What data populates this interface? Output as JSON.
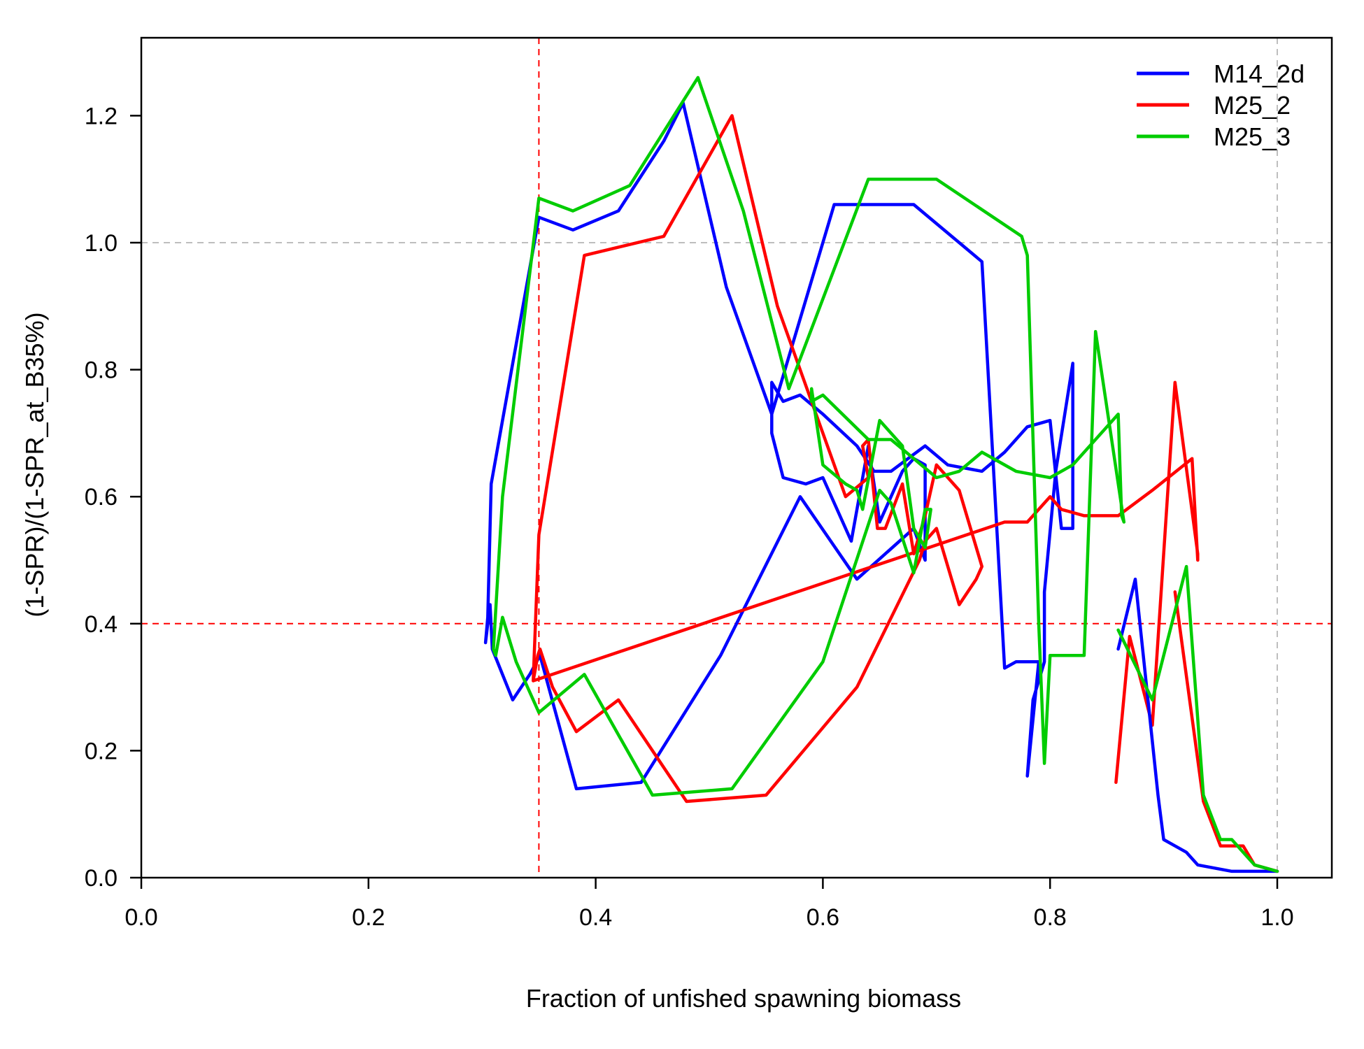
{
  "chart_data": {
    "type": "line",
    "title": "",
    "xlabel": "Fraction of unfished spawning biomass",
    "ylabel": "(1-SPR)/(1-SPR_at_B35%)",
    "xlim": [
      0.0,
      1.05
    ],
    "ylim": [
      0.0,
      1.3
    ],
    "xticks": [
      "0.0",
      "0.2",
      "0.4",
      "0.6",
      "0.8",
      "1.0"
    ],
    "yticks": [
      "0.0",
      "0.2",
      "0.4",
      "0.6",
      "0.8",
      "1.0",
      "1.2"
    ],
    "grid": false,
    "legend_position": "top-right",
    "reference_lines": [
      {
        "axis": "x",
        "value": 0.35,
        "color": "#ff0000",
        "style": "dashed"
      },
      {
        "axis": "y",
        "value": 0.4,
        "color": "#ff0000",
        "style": "dashed"
      },
      {
        "axis": "x",
        "value": 1.0,
        "color": "#bebebe",
        "style": "dashed"
      },
      {
        "axis": "y",
        "value": 1.0,
        "color": "#bebebe",
        "style": "dashed"
      }
    ],
    "series": [
      {
        "name": "M14_2d",
        "color": "#0000ff",
        "points": [
          [
            0.303,
            0.37
          ],
          [
            0.307,
            0.43
          ],
          [
            0.309,
            0.36
          ],
          [
            0.327,
            0.28
          ],
          [
            0.342,
            0.32
          ],
          [
            0.351,
            0.35
          ],
          [
            0.383,
            0.14
          ],
          [
            0.44,
            0.15
          ],
          [
            0.51,
            0.35
          ],
          [
            0.58,
            0.6
          ],
          [
            0.63,
            0.47
          ],
          [
            0.68,
            0.55
          ],
          [
            0.69,
            0.5
          ],
          [
            0.69,
            0.65
          ],
          [
            0.68,
            0.66
          ],
          [
            0.67,
            0.64
          ],
          [
            0.65,
            0.56
          ],
          [
            0.64,
            0.68
          ],
          [
            0.625,
            0.53
          ],
          [
            0.6,
            0.63
          ],
          [
            0.585,
            0.62
          ],
          [
            0.565,
            0.63
          ],
          [
            0.555,
            0.7
          ],
          [
            0.555,
            0.78
          ],
          [
            0.565,
            0.75
          ],
          [
            0.58,
            0.76
          ],
          [
            0.6,
            0.73
          ],
          [
            0.63,
            0.68
          ],
          [
            0.645,
            0.64
          ],
          [
            0.66,
            0.64
          ],
          [
            0.675,
            0.66
          ],
          [
            0.69,
            0.68
          ],
          [
            0.71,
            0.65
          ],
          [
            0.74,
            0.64
          ],
          [
            0.76,
            0.67
          ],
          [
            0.78,
            0.71
          ],
          [
            0.8,
            0.72
          ],
          [
            0.81,
            0.55
          ],
          [
            0.82,
            0.55
          ],
          [
            0.82,
            0.81
          ],
          [
            0.805,
            0.64
          ],
          [
            0.795,
            0.45
          ],
          [
            0.795,
            0.34
          ],
          [
            0.785,
            0.28
          ],
          [
            0.78,
            0.16
          ],
          [
            0.79,
            0.34
          ],
          [
            0.77,
            0.34
          ],
          [
            0.76,
            0.33
          ],
          [
            0.74,
            0.97
          ],
          [
            0.68,
            1.06
          ],
          [
            0.61,
            1.06
          ],
          [
            0.555,
            0.73
          ],
          [
            0.515,
            0.93
          ],
          [
            0.477,
            1.22
          ],
          [
            0.46,
            1.16
          ],
          [
            0.42,
            1.05
          ],
          [
            0.38,
            1.02
          ],
          [
            0.35,
            1.04
          ],
          [
            0.318,
            0.72
          ],
          [
            0.308,
            0.62
          ],
          [
            0.305,
            0.41
          ],
          [
            0.303,
            0.37
          ]
        ]
      },
      {
        "name": "M25_2",
        "color": "#ff0000",
        "points": [
          [
            0.345,
            0.31
          ],
          [
            0.349,
            0.35
          ],
          [
            0.351,
            0.36
          ],
          [
            0.362,
            0.3
          ],
          [
            0.383,
            0.23
          ],
          [
            0.42,
            0.28
          ],
          [
            0.48,
            0.12
          ],
          [
            0.55,
            0.13
          ],
          [
            0.63,
            0.3
          ],
          [
            0.685,
            0.5
          ],
          [
            0.69,
            0.53
          ],
          [
            0.7,
            0.55
          ],
          [
            0.72,
            0.43
          ],
          [
            0.735,
            0.47
          ],
          [
            0.74,
            0.49
          ],
          [
            0.72,
            0.61
          ],
          [
            0.7,
            0.65
          ],
          [
            0.69,
            0.57
          ],
          [
            0.68,
            0.51
          ],
          [
            0.67,
            0.62
          ],
          [
            0.655,
            0.55
          ],
          [
            0.648,
            0.55
          ],
          [
            0.64,
            0.69
          ],
          [
            0.635,
            0.68
          ],
          [
            0.64,
            0.63
          ],
          [
            0.62,
            0.6
          ],
          [
            0.6,
            0.7
          ],
          [
            0.58,
            0.8
          ],
          [
            0.56,
            0.9
          ],
          [
            0.52,
            1.2
          ],
          [
            0.46,
            1.01
          ],
          [
            0.39,
            0.98
          ],
          [
            0.35,
            0.54
          ],
          [
            0.345,
            0.31
          ],
          [
            0.76,
            0.56
          ],
          [
            0.78,
            0.56
          ],
          [
            0.8,
            0.6
          ],
          [
            0.81,
            0.58
          ],
          [
            0.83,
            0.57
          ],
          [
            0.86,
            0.57
          ],
          [
            0.89,
            0.61
          ],
          [
            0.925,
            0.66
          ],
          [
            0.93,
            0.5
          ],
          [
            0.93,
            0.51
          ],
          [
            0.91,
            0.78
          ],
          [
            0.89,
            0.24
          ],
          [
            0.87,
            0.38
          ],
          [
            0.858,
            0.15
          ]
        ]
      },
      {
        "name": "M25_3",
        "color": "#00cc00",
        "points": [
          [
            0.312,
            0.35
          ],
          [
            0.318,
            0.41
          ],
          [
            0.33,
            0.34
          ],
          [
            0.35,
            0.26
          ],
          [
            0.39,
            0.32
          ],
          [
            0.45,
            0.13
          ],
          [
            0.52,
            0.14
          ],
          [
            0.6,
            0.34
          ],
          [
            0.65,
            0.61
          ],
          [
            0.66,
            0.59
          ],
          [
            0.68,
            0.48
          ],
          [
            0.69,
            0.58
          ],
          [
            0.695,
            0.58
          ],
          [
            0.69,
            0.52
          ],
          [
            0.68,
            0.55
          ],
          [
            0.67,
            0.68
          ],
          [
            0.65,
            0.72
          ],
          [
            0.635,
            0.58
          ],
          [
            0.63,
            0.61
          ],
          [
            0.62,
            0.62
          ],
          [
            0.6,
            0.65
          ],
          [
            0.59,
            0.77
          ],
          [
            0.59,
            0.75
          ],
          [
            0.6,
            0.76
          ],
          [
            0.64,
            0.69
          ],
          [
            0.66,
            0.69
          ],
          [
            0.7,
            0.63
          ],
          [
            0.72,
            0.64
          ],
          [
            0.74,
            0.67
          ],
          [
            0.77,
            0.64
          ],
          [
            0.8,
            0.63
          ],
          [
            0.82,
            0.65
          ],
          [
            0.86,
            0.73
          ],
          [
            0.863,
            0.57
          ],
          [
            0.865,
            0.56
          ],
          [
            0.84,
            0.86
          ],
          [
            0.83,
            0.35
          ],
          [
            0.81,
            0.35
          ],
          [
            0.8,
            0.35
          ],
          [
            0.795,
            0.18
          ],
          [
            0.79,
            0.4
          ],
          [
            0.78,
            0.98
          ],
          [
            0.775,
            1.01
          ],
          [
            0.7,
            1.1
          ],
          [
            0.64,
            1.1
          ],
          [
            0.57,
            0.77
          ],
          [
            0.53,
            1.05
          ],
          [
            0.49,
            1.26
          ],
          [
            0.43,
            1.09
          ],
          [
            0.38,
            1.05
          ],
          [
            0.35,
            1.07
          ],
          [
            0.318,
            0.6
          ],
          [
            0.31,
            0.36
          ],
          [
            0.312,
            0.35
          ]
        ]
      }
    ],
    "tail_segments": [
      {
        "name_ref": "M14_2d",
        "color": "#0000ff",
        "points": [
          [
            0.86,
            0.36
          ],
          [
            0.875,
            0.47
          ],
          [
            0.895,
            0.13
          ],
          [
            0.9,
            0.06
          ],
          [
            0.91,
            0.05
          ],
          [
            0.92,
            0.04
          ],
          [
            0.93,
            0.02
          ],
          [
            0.96,
            0.01
          ],
          [
            1.0,
            0.01
          ]
        ]
      },
      {
        "name_ref": "M25_2",
        "color": "#ff0000",
        "points": [
          [
            0.91,
            0.45
          ],
          [
            0.935,
            0.12
          ],
          [
            0.95,
            0.05
          ],
          [
            0.97,
            0.05
          ],
          [
            0.98,
            0.02
          ],
          [
            1.0,
            0.01
          ]
        ]
      },
      {
        "name_ref": "M25_3",
        "color": "#00cc00",
        "points": [
          [
            0.86,
            0.39
          ],
          [
            0.89,
            0.28
          ],
          [
            0.92,
            0.49
          ],
          [
            0.935,
            0.13
          ],
          [
            0.95,
            0.06
          ],
          [
            0.96,
            0.06
          ],
          [
            0.98,
            0.02
          ],
          [
            1.0,
            0.01
          ]
        ]
      }
    ]
  }
}
